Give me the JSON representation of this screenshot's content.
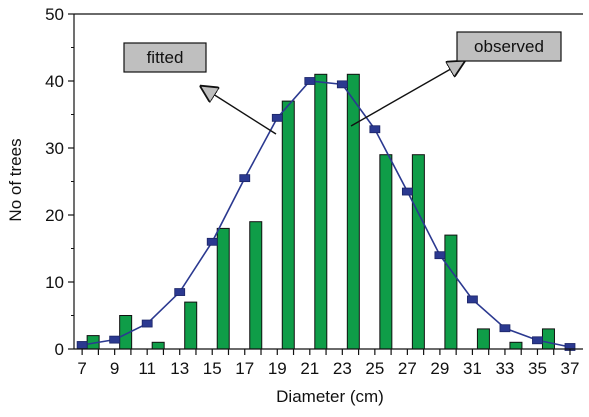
{
  "chart_data": {
    "type": "bar",
    "title": "",
    "xlabel": "Diameter (cm)",
    "ylabel": "No of trees",
    "ylim": [
      0,
      50
    ],
    "yticks": [
      0,
      10,
      20,
      30,
      40,
      50
    ],
    "grid": false,
    "legend": "none",
    "categories": [
      7,
      9,
      11,
      13,
      15,
      17,
      19,
      21,
      23,
      25,
      27,
      29,
      31,
      33,
      35,
      37
    ],
    "tick_labels": [
      "7",
      "9",
      "11",
      "13",
      "15",
      "17",
      "19",
      "21",
      "23",
      "25",
      "27",
      "29",
      "31",
      "33",
      "35",
      "37"
    ],
    "series": [
      {
        "name": "observed",
        "type": "bar",
        "color": "#0f9d48",
        "values": [
          2,
          5,
          1,
          7,
          18,
          19,
          37,
          41,
          41,
          29,
          29,
          17,
          3,
          1,
          3,
          0
        ]
      },
      {
        "name": "fitted",
        "type": "line",
        "color": "#2b3990",
        "values": [
          0.6,
          1.4,
          3.8,
          8.5,
          16,
          25.5,
          34.5,
          40,
          39.5,
          32.8,
          23.5,
          14,
          7.4,
          3.1,
          1.3,
          0.3
        ]
      }
    ],
    "annotations": [
      {
        "text": "fitted",
        "points_to": "fitted"
      },
      {
        "text": "observed",
        "points_to": "observed"
      }
    ]
  }
}
